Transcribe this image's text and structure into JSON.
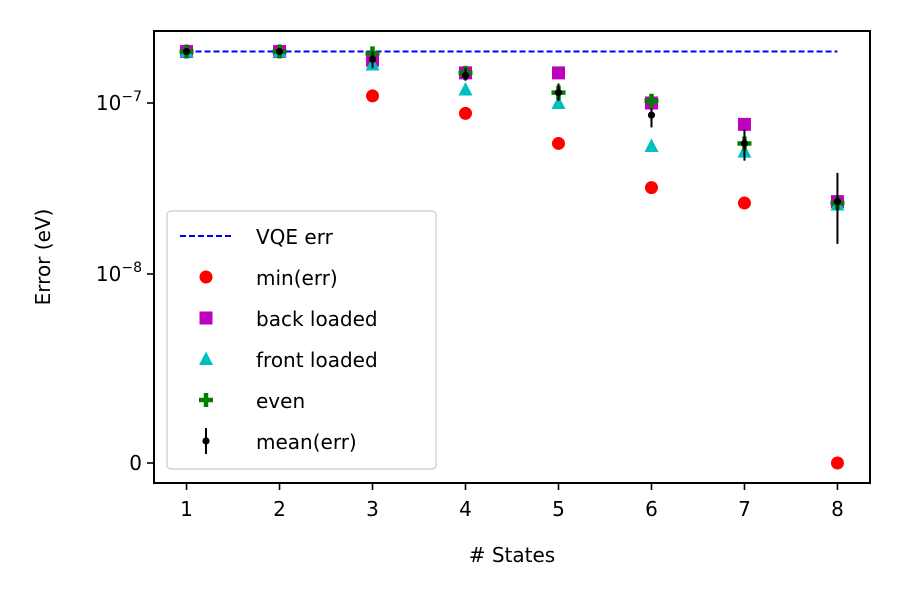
{
  "chart_data": {
    "type": "scatter",
    "title": "",
    "xlabel": "# States",
    "ylabel": "Error (eV)",
    "x_ticks": [
      "1",
      "2",
      "3",
      "4",
      "5",
      "6",
      "7",
      "8"
    ],
    "y_ticks": [
      {
        "value": 0,
        "label": "0"
      },
      {
        "value": 1e-08,
        "label": "10",
        "sup": "−8"
      },
      {
        "value": 1e-07,
        "label": "10",
        "sup": "−7"
      }
    ],
    "yscale": "symlog",
    "xlim": [
      0.65,
      8.35
    ],
    "grid": false,
    "legend_position": "lower-left",
    "vqe_err": {
      "name": "VQE err",
      "value": 2e-07,
      "color": "#0000ff",
      "style": "dashed"
    },
    "series": [
      {
        "name": "min(err)",
        "marker": "circle",
        "color": "#ff0000",
        "x": [
          1,
          2,
          3,
          4,
          5,
          6,
          7,
          8
        ],
        "y": [
          2e-07,
          2e-07,
          1.1e-07,
          8.7e-08,
          5.8e-08,
          3.2e-08,
          2.6e-08,
          0
        ]
      },
      {
        "name": "back loaded",
        "marker": "square",
        "color": "#bf00bf",
        "x": [
          1,
          2,
          3,
          4,
          5,
          6,
          7,
          8
        ],
        "y": [
          2e-07,
          2e-07,
          1.78e-07,
          1.5e-07,
          1.5e-07,
          1e-07,
          7.5e-08,
          2.65e-08
        ]
      },
      {
        "name": "front loaded",
        "marker": "triangle",
        "color": "#00bfbf",
        "x": [
          1,
          2,
          3,
          4,
          5,
          6,
          7,
          8
        ],
        "y": [
          2e-07,
          2e-07,
          1.68e-07,
          1.2e-07,
          1e-07,
          5.6e-08,
          5.2e-08,
          2.55e-08
        ]
      },
      {
        "name": "even",
        "marker": "plus",
        "color": "#008000",
        "x": [
          1,
          2,
          3,
          4,
          5,
          6,
          7,
          8
        ],
        "y": [
          2e-07,
          2e-07,
          1.95e-07,
          1.5e-07,
          1.15e-07,
          1.03e-07,
          5.8e-08,
          2.6e-08
        ]
      },
      {
        "name": "mean(err)",
        "marker": "errorbar",
        "color": "#000000",
        "x": [
          1,
          2,
          3,
          4,
          5,
          6,
          7,
          8
        ],
        "y": [
          2e-07,
          2e-07,
          1.8e-07,
          1.45e-07,
          1.15e-07,
          8.5e-08,
          5.8e-08,
          2.65e-08
        ],
        "err_low": [
          0,
          0,
          1.6e-07,
          1.35e-07,
          1.03e-07,
          7.2e-08,
          4.6e-08,
          1.5e-08
        ],
        "err_high": [
          0,
          0,
          2e-07,
          1.6e-07,
          1.3e-07,
          9.3e-08,
          7e-08,
          3.9e-08
        ]
      }
    ]
  }
}
